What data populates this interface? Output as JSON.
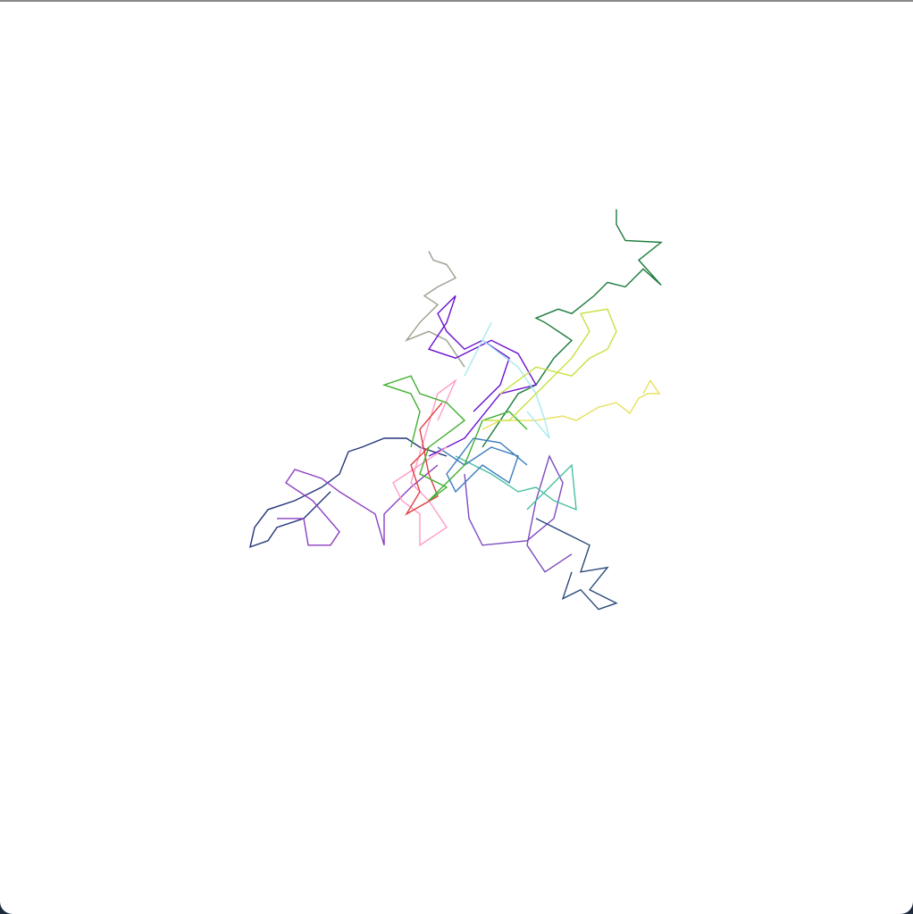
{
  "chart_data": {
    "type": "walk",
    "xlim": [
      -511,
      511
    ],
    "ylim": [
      -512,
      512
    ],
    "series": [
      {
        "color": "#1a7a3a",
        "x": [
          29,
          49,
          69,
          89,
          109,
          129,
          99,
          89,
          114,
          129,
          154,
          169,
          189,
          209,
          229,
          204,
          229,
          189,
          179,
          179
        ],
        "values": [
          12,
          42,
          72,
          82,
          112,
          132,
          152,
          157,
          167,
          162,
          182,
          197,
          192,
          212,
          194,
          222,
          242,
          244,
          262,
          279
        ]
      },
      {
        "color": "#e8e05a",
        "x": [
          29,
          49,
          89,
          119,
          134,
          159,
          179,
          194,
          204,
          214,
          227,
          217,
          209
        ],
        "values": [
          32,
          42,
          42,
          47,
          42,
          57,
          62,
          50,
          67,
          72,
          72,
          87,
          72
        ]
      },
      {
        "color": "#9aa08e",
        "x": [
          9,
          -11,
          -31,
          -56,
          -41,
          -21,
          -36,
          -21,
          -1,
          -11,
          -26,
          -31
        ],
        "values": [
          102,
          132,
          142,
          132,
          152,
          172,
          182,
          192,
          202,
          217,
          222,
          232
        ]
      },
      {
        "color": "#6a10d0",
        "x": [
          19,
          49,
          59,
          29,
          9,
          -11,
          -21,
          -1,
          -11,
          -31,
          -1,
          39,
          69,
          89,
          49,
          9,
          -31
        ],
        "values": [
          52,
          82,
          112,
          132,
          122,
          142,
          162,
          182,
          152,
          122,
          112,
          132,
          117,
          82,
          72,
          22,
          2
        ]
      },
      {
        "color": "#23357a",
        "x": [
          -11,
          -41,
          -56,
          -81,
          -106,
          -121,
          -131,
          -151,
          -181,
          -211,
          -226,
          -231,
          -211,
          -201,
          -171,
          -141
        ],
        "values": [
          2,
          12,
          22,
          22,
          12,
          7,
          -18,
          -33,
          -48,
          -58,
          -78,
          -100,
          -93,
          -78,
          -68,
          -38
        ]
      },
      {
        "color": "#8a3ec0",
        "x": [
          -21,
          -51,
          -81,
          -81,
          -91,
          -131,
          -151,
          -181,
          -191,
          -161,
          -131,
          -141,
          -166,
          -171,
          -201
        ],
        "values": [
          -8,
          -33,
          -63,
          -98,
          -63,
          -38,
          -23,
          -13,
          -28,
          -48,
          -83,
          -98,
          -98,
          -68,
          -68
        ]
      },
      {
        "color": "#7d4bc0",
        "x": [
          9,
          14,
          29,
          79,
          109,
          119,
          104,
          89,
          79,
          99,
          129
        ],
        "values": [
          -18,
          -68,
          -98,
          -93,
          -68,
          -28,
          2,
          -48,
          -98,
          -128,
          -108
        ]
      },
      {
        "color": "#2b4a7a",
        "x": [
          89,
          129,
          149,
          139,
          169,
          149,
          179,
          159,
          139,
          119,
          129
        ],
        "values": [
          -68,
          -88,
          -98,
          -128,
          -123,
          -148,
          -163,
          -170,
          -148,
          -158,
          -128
        ]
      },
      {
        "color": "#4ac0a0",
        "x": [
          -1,
          39,
          69,
          89,
          109,
          134,
          129,
          109,
          79
        ],
        "values": [
          2,
          -18,
          -38,
          -33,
          -48,
          -58,
          -8,
          -28,
          -58
        ]
      },
      {
        "color": "#3a7cc0",
        "x": [
          -21,
          9,
          39,
          69,
          59,
          29,
          -1,
          -11,
          19,
          49,
          79
        ],
        "values": [
          12,
          -8,
          12,
          2,
          -28,
          -8,
          -38,
          -18,
          22,
          17,
          -8
        ]
      },
      {
        "color": "#a8eaf0",
        "x": [
          9,
          39,
          29,
          69,
          89,
          99,
          104,
          79
        ],
        "values": [
          92,
          152,
          132,
          102,
          72,
          42,
          22,
          52
        ]
      },
      {
        "color": "#ff9ac8",
        "x": [
          -11,
          -41,
          -71,
          -61,
          -41,
          -41,
          -11,
          -31,
          -51,
          -21,
          -1,
          -21
        ],
        "values": [
          12,
          -8,
          -28,
          -48,
          -63,
          -98,
          -78,
          -48,
          -28,
          72,
          87,
          42
        ]
      },
      {
        "color": "#e04040",
        "x": [
          -31,
          -51,
          -41,
          -56,
          -21,
          -31,
          -41,
          -16
        ],
        "values": [
          12,
          -8,
          -38,
          -63,
          -43,
          -18,
          32,
          62
        ]
      },
      {
        "color": "#40b030",
        "x": [
          -51,
          -41,
          -51,
          -81,
          -51,
          -41,
          -11,
          9,
          -31,
          -41,
          -11,
          -31,
          9,
          29,
          59,
          79
        ],
        "values": [
          12,
          52,
          72,
          82,
          92,
          72,
          62,
          42,
          12,
          -18,
          -33,
          -48,
          -8,
          42,
          52,
          32
        ]
      },
      {
        "color": "#c8e040",
        "x": [
          49,
          89,
          129,
          149,
          169,
          179,
          169,
          139,
          149,
          129,
          89,
          59,
          29
        ],
        "values": [
          72,
          102,
          92,
          112,
          122,
          142,
          167,
          162,
          142,
          112,
          72,
          42,
          42
        ]
      }
    ]
  }
}
